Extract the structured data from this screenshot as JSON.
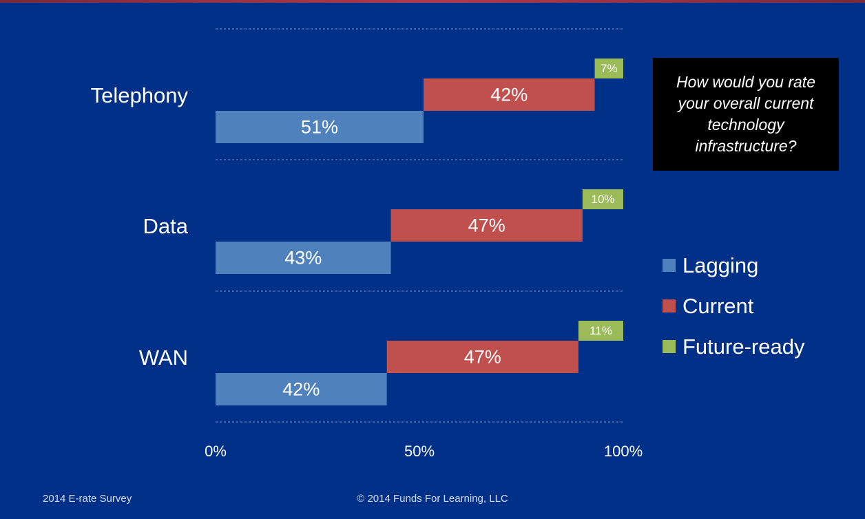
{
  "chart_data": {
    "type": "bar",
    "stacked_layout": "stepped",
    "categories": [
      "Telephony",
      "Data",
      "WAN"
    ],
    "series": [
      {
        "name": "Lagging",
        "values": [
          51,
          43,
          42
        ],
        "color": "#4f81bd"
      },
      {
        "name": "Current",
        "values": [
          42,
          47,
          47
        ],
        "color": "#c0504d"
      },
      {
        "name": "Future-ready",
        "values": [
          7,
          10,
          11
        ],
        "color": "#9bbb59"
      }
    ],
    "data_labels": [
      [
        "51%",
        "42%",
        "7%"
      ],
      [
        "43%",
        "47%",
        "10%"
      ],
      [
        "42%",
        "47%",
        "11%"
      ]
    ],
    "x_ticks": [
      "0%",
      "50%",
      "100%"
    ],
    "xlim": [
      0,
      100
    ],
    "legend_position": "right",
    "grid": "dashed horizontal separators"
  },
  "question": "How would you rate your overall current technology infrastructure?",
  "legend": [
    {
      "label": "Lagging",
      "color": "#4f81bd"
    },
    {
      "label": "Current",
      "color": "#c0504d"
    },
    {
      "label": "Future-ready",
      "color": "#9bbb59"
    }
  ],
  "footer": {
    "left": "2014 E-rate Survey",
    "center": "© 2014 Funds For Learning, LLC"
  }
}
